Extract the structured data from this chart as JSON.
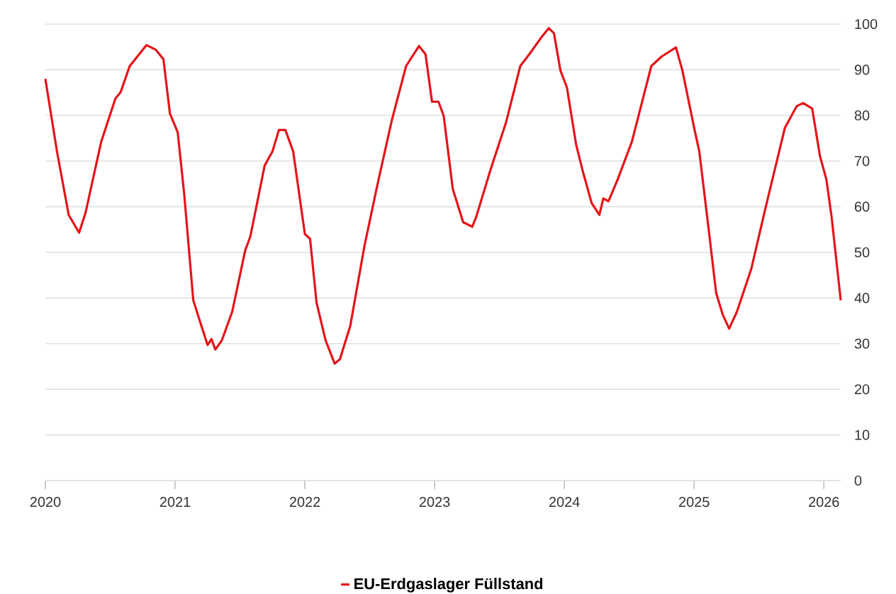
{
  "chart_data": {
    "type": "line",
    "x": [
      2020.0,
      2020.09,
      2020.18,
      2020.26,
      2020.31,
      2020.43,
      2020.54,
      2020.58,
      2020.65,
      2020.78,
      2020.85,
      2020.91,
      2020.96,
      2021.02,
      2021.07,
      2021.14,
      2021.18,
      2021.25,
      2021.28,
      2021.31,
      2021.36,
      2021.44,
      2021.54,
      2021.58,
      2021.69,
      2021.75,
      2021.8,
      2021.85,
      2021.91,
      2022.0,
      2022.04,
      2022.09,
      2022.16,
      2022.23,
      2022.27,
      2022.35,
      2022.46,
      2022.56,
      2022.67,
      2022.78,
      2022.88,
      2022.93,
      2022.98,
      2023.03,
      2023.07,
      2023.14,
      2023.22,
      2023.29,
      2023.32,
      2023.43,
      2023.55,
      2023.66,
      2023.73,
      2023.82,
      2023.88,
      2023.92,
      2023.97,
      2024.02,
      2024.09,
      2024.14,
      2024.21,
      2024.27,
      2024.3,
      2024.34,
      2024.41,
      2024.52,
      2024.67,
      2024.75,
      2024.86,
      2024.91,
      2025.0,
      2025.04,
      2025.11,
      2025.17,
      2025.22,
      2025.27,
      2025.33,
      2025.44,
      2025.55,
      2025.7,
      2025.79,
      2025.84,
      2025.91,
      2025.97,
      2026.02,
      2026.06,
      2026.13
    ],
    "series": [
      {
        "name": "EU-Erdgaslager Füllstand",
        "color": "#e3151a",
        "values": [
          88,
          72,
          58.2,
          54.3,
          58.7,
          74.2,
          83.7,
          85.1,
          90.8,
          95.4,
          94.4,
          92.3,
          80.4,
          76.3,
          62.8,
          39.5,
          35.9,
          29.7,
          31,
          28.7,
          30.7,
          37,
          50.4,
          53.5,
          69,
          72.1,
          76.8,
          76.8,
          72.1,
          54,
          53,
          39,
          30.7,
          25.6,
          26.6,
          33.9,
          51.5,
          64.9,
          78.9,
          90.8,
          95.2,
          93.4,
          83,
          83,
          79.9,
          63.9,
          56.6,
          55.6,
          57.7,
          68,
          78.4,
          90.8,
          93.4,
          97,
          99.1,
          98,
          89.8,
          86.1,
          73.7,
          68,
          60.8,
          58.2,
          61.8,
          61.2,
          65.9,
          74.2,
          90.8,
          92.9,
          94.9,
          89.8,
          77.3,
          72.1,
          55.6,
          41.1,
          36.4,
          33.3,
          37,
          46.3,
          59.7,
          77.3,
          82,
          82.7,
          81.5,
          71.1,
          65.9,
          57.7,
          39.5
        ]
      }
    ],
    "xlim": [
      2020,
      2026.13
    ],
    "xticks": [
      2020,
      2021,
      2022,
      2023,
      2024,
      2025,
      2026
    ],
    "ylim": [
      0,
      100
    ],
    "yticks": [
      0,
      10,
      20,
      30,
      40,
      50,
      60,
      70,
      80,
      90,
      100
    ],
    "grid": "y",
    "legend": "bottom",
    "line_style": "solid",
    "marker": "none"
  }
}
